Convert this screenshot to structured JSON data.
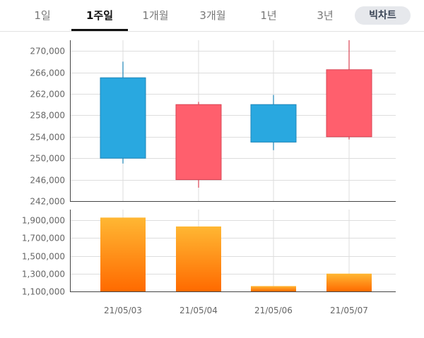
{
  "tabs": [
    {
      "label": "1일",
      "active": false
    },
    {
      "label": "1주일",
      "active": true
    },
    {
      "label": "1개월",
      "active": false
    },
    {
      "label": "3개월",
      "active": false
    },
    {
      "label": "1년",
      "active": false
    },
    {
      "label": "3년",
      "active": false
    }
  ],
  "big_chart_label": "빅차트",
  "colors": {
    "up": "#ff5f6d",
    "down": "#29a8e0",
    "volume_top": "#ffb733",
    "volume_bottom": "#ff6a00",
    "grid": "#dddddd",
    "axis": "#444444"
  },
  "chart_data": [
    {
      "type": "candlestick",
      "categories": [
        "21/05/03",
        "21/05/04",
        "21/05/06",
        "21/05/07"
      ],
      "open": [
        265000,
        246000,
        260000,
        254000
      ],
      "close": [
        250000,
        260000,
        253000,
        266500
      ],
      "high": [
        268000,
        260500,
        261800,
        272000
      ],
      "low": [
        249000,
        244500,
        251500,
        253500
      ],
      "ylim": [
        242000,
        272000
      ],
      "yticks": [
        242000,
        246000,
        250000,
        254000,
        258000,
        262000,
        266000,
        270000
      ],
      "ytick_labels": [
        "242,000",
        "246,000",
        "250,000",
        "254,000",
        "258,000",
        "262,000",
        "266,000",
        "270,000"
      ]
    },
    {
      "type": "bar",
      "categories": [
        "21/05/03",
        "21/05/04",
        "21/05/06",
        "21/05/07"
      ],
      "values": [
        1930000,
        1830000,
        1160000,
        1300000
      ],
      "ylim": [
        1100000,
        2020000
      ],
      "yticks": [
        1100000,
        1300000,
        1500000,
        1700000,
        1900000
      ],
      "ytick_labels": [
        "1,100,000",
        "1,300,000",
        "1,500,000",
        "1,700,000",
        "1,900,000"
      ]
    }
  ]
}
